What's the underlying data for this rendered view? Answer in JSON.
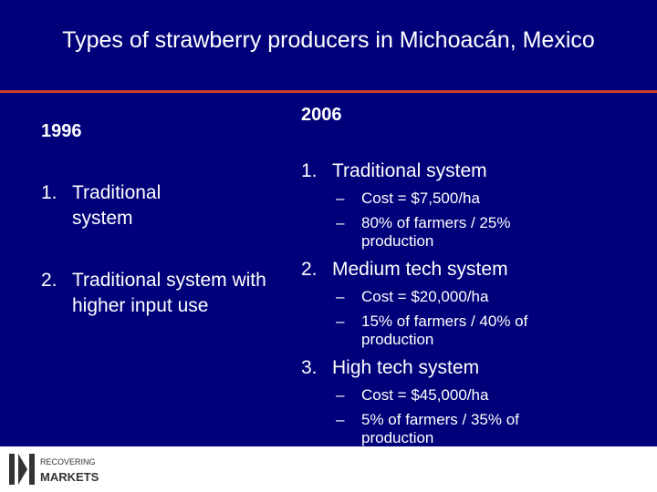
{
  "header": {
    "title": "Types of strawberry producers in Michoacán, Mexico"
  },
  "left": {
    "heading": "1996",
    "items": [
      {
        "number": "1.",
        "text": "Traditional system"
      },
      {
        "number": "2.",
        "text": "Traditional system with higher input use"
      }
    ]
  },
  "right": {
    "heading": "2006",
    "items": [
      {
        "number": "1.",
        "text": "Traditional system",
        "sub": [
          {
            "marker": "–",
            "text": "Cost = $7,500/ha"
          },
          {
            "marker": "–",
            "text": "80% of farmers / 25% production"
          }
        ]
      },
      {
        "number": "2.",
        "text": "Medium tech system",
        "sub": [
          {
            "marker": "–",
            "text": "Cost = $20,000/ha"
          },
          {
            "marker": "–",
            "text": "15% of farmers / 40% of production"
          }
        ]
      },
      {
        "number": "3.",
        "text": "High tech system",
        "sub": [
          {
            "marker": "–",
            "text": "Cost = $45,000/ha"
          },
          {
            "marker": "–",
            "text": "5% of farmers / 35% of production"
          }
        ]
      }
    ]
  },
  "logo": {
    "top": "RECOVERING",
    "bottom": "MARKETS"
  }
}
